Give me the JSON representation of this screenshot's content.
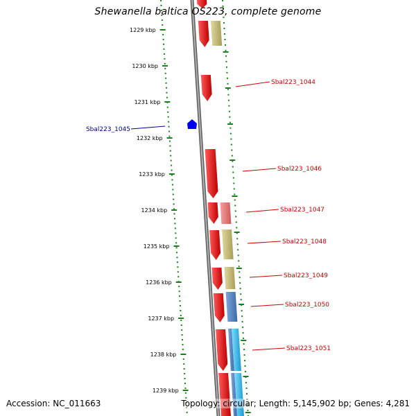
{
  "title": "Shewanella baltica OS223, complete genome",
  "footer": {
    "accession": "Accession: NC_011663",
    "stats": "Topology: circular; Length: 5,145,902 bp; Genes: 4,281"
  },
  "colors": {
    "backbone": "#8a8a8a",
    "tick_dotted": "#1a7f1a",
    "gene_red": "#ee0000",
    "gene_pink": "#ee7777",
    "gene_olive": "#c8bf78",
    "gene_blue": "#4f86c6",
    "gene_cyan": "#33bbee",
    "marker_blue": "#0000ee",
    "label_red": "#cc0000",
    "label_blue": "#000088"
  },
  "ticks": [
    "1229 kbp",
    "1230 kbp",
    "1231 kbp",
    "1232 kbp",
    "1233 kbp",
    "1234 kbp",
    "1235 kbp",
    "1236 kbp",
    "1237 kbp",
    "1238 kbp",
    "1239 kbp"
  ],
  "gene_labels": [
    {
      "text": "Sbal223_1044",
      "side": "right"
    },
    {
      "text": "Sbal223_1045",
      "side": "left"
    },
    {
      "text": "Sbal223_1046",
      "side": "right"
    },
    {
      "text": "Sbal223_1047",
      "side": "right"
    },
    {
      "text": "Sbal223_1048",
      "side": "right"
    },
    {
      "text": "Sbal223_1049",
      "side": "right"
    },
    {
      "text": "Sbal223_1050",
      "side": "right"
    },
    {
      "text": "Sbal223_1051",
      "side": "right"
    }
  ]
}
